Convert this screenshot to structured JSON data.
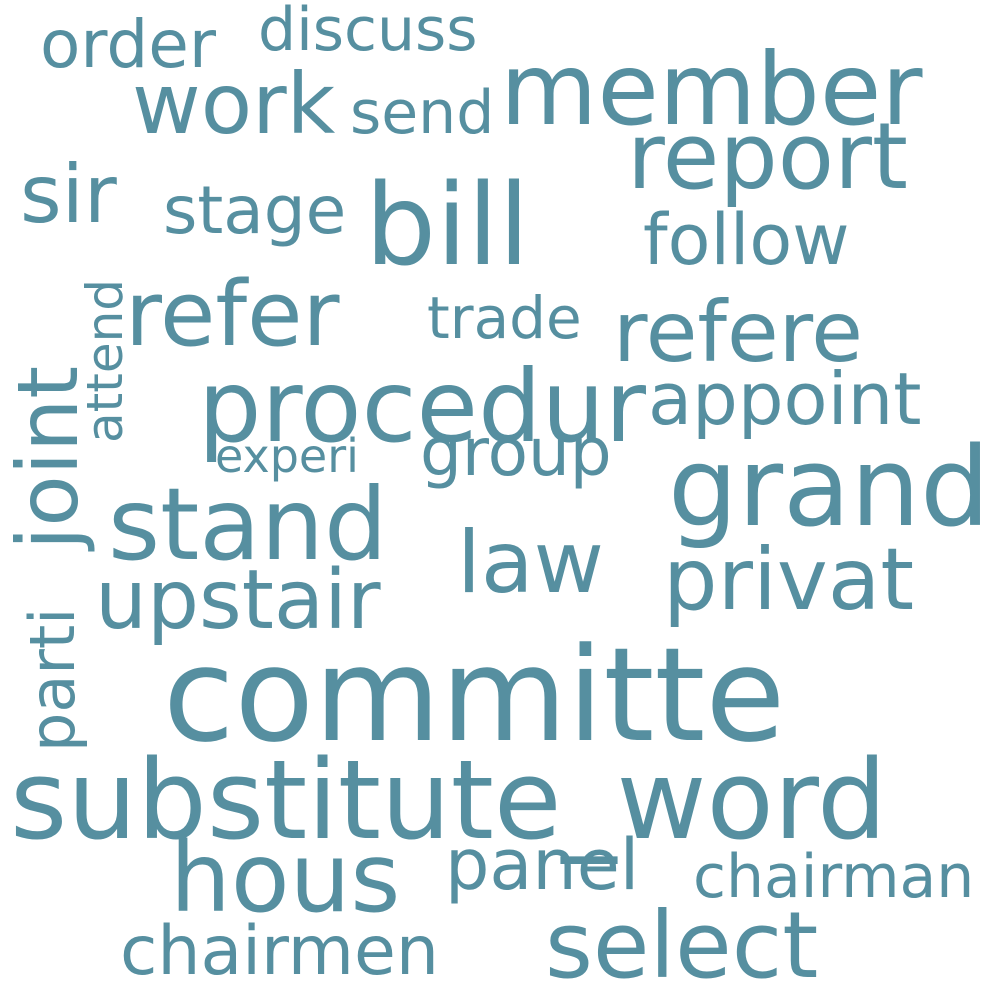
{
  "word_color": "#568fa0",
  "background": "#ffffff",
  "words": {
    "committe": "committe",
    "substitute_word": "substitute_word",
    "bill": "bill",
    "grand": "grand",
    "member": "member",
    "report": "report",
    "procedur": "procedur",
    "stand": "stand",
    "refer": "refer",
    "hous": "hous",
    "select": "select",
    "joint": "joint",
    "refere": "refere",
    "work": "work",
    "privat": "privat",
    "upstair": "upstair",
    "appoint": "appoint",
    "follow": "follow",
    "law": "law",
    "panel": "panel",
    "chairmen": "chairmen",
    "sir": "sir",
    "stage": "stage",
    "order": "order",
    "chairman": "chairman",
    "group": "group",
    "attend": "attend",
    "trade": "trade",
    "parti": "parti",
    "send": "send",
    "discuss": "discuss",
    "experi": "experi"
  }
}
